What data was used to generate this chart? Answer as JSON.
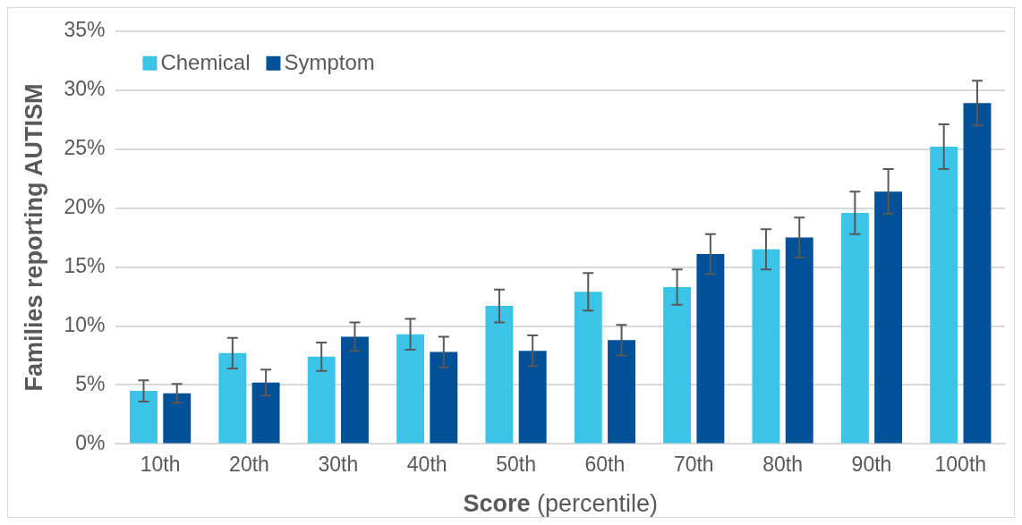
{
  "chart_data": {
    "type": "bar",
    "xlabel": "Score (percentile)",
    "ylabel": "Families reporting AUTISM",
    "categories": [
      "10th",
      "20th",
      "30th",
      "40th",
      "50th",
      "60th",
      "70th",
      "80th",
      "90th",
      "100th"
    ],
    "series": [
      {
        "name": "Chemical",
        "color": "#3cc3e8",
        "values": [
          4.5,
          7.7,
          7.4,
          9.3,
          11.7,
          12.9,
          13.3,
          16.5,
          19.6,
          25.2
        ],
        "errors": [
          0.9,
          1.3,
          1.2,
          1.3,
          1.4,
          1.6,
          1.5,
          1.7,
          1.8,
          1.9
        ]
      },
      {
        "name": "Symptom",
        "color": "#005197",
        "values": [
          4.3,
          5.2,
          9.1,
          7.8,
          7.9,
          8.8,
          16.1,
          17.5,
          21.4,
          28.9
        ],
        "errors": [
          0.8,
          1.1,
          1.2,
          1.3,
          1.3,
          1.3,
          1.7,
          1.7,
          1.9,
          1.9
        ]
      }
    ],
    "ylim": [
      0,
      35
    ],
    "yticks": [
      {
        "value": 0,
        "label": "0%"
      },
      {
        "value": 5,
        "label": "5%"
      },
      {
        "value": 10,
        "label": "10%"
      },
      {
        "value": 15,
        "label": "15%"
      },
      {
        "value": 20,
        "label": "20%"
      },
      {
        "value": 25,
        "label": "25%"
      },
      {
        "value": 30,
        "label": "30%"
      },
      {
        "value": 35,
        "label": "35%"
      }
    ],
    "grid": "y",
    "legend": "top left"
  }
}
